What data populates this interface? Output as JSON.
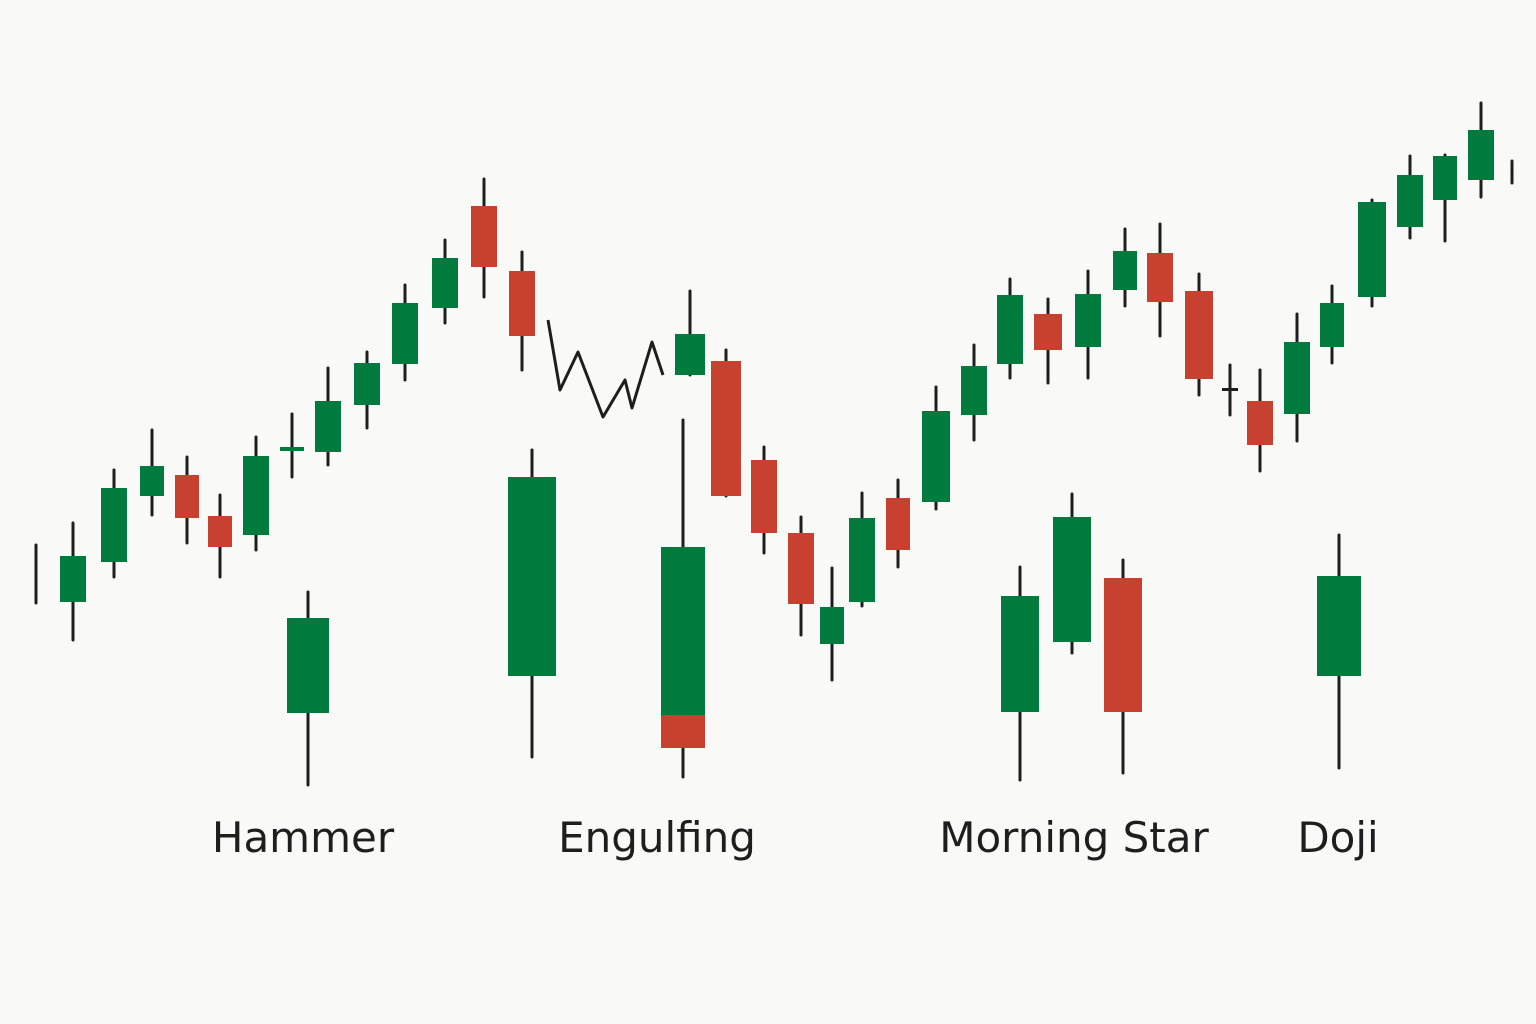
{
  "labels": [
    "Hammer",
    "Engulfing",
    "Morning Star",
    "Doji"
  ]
}
